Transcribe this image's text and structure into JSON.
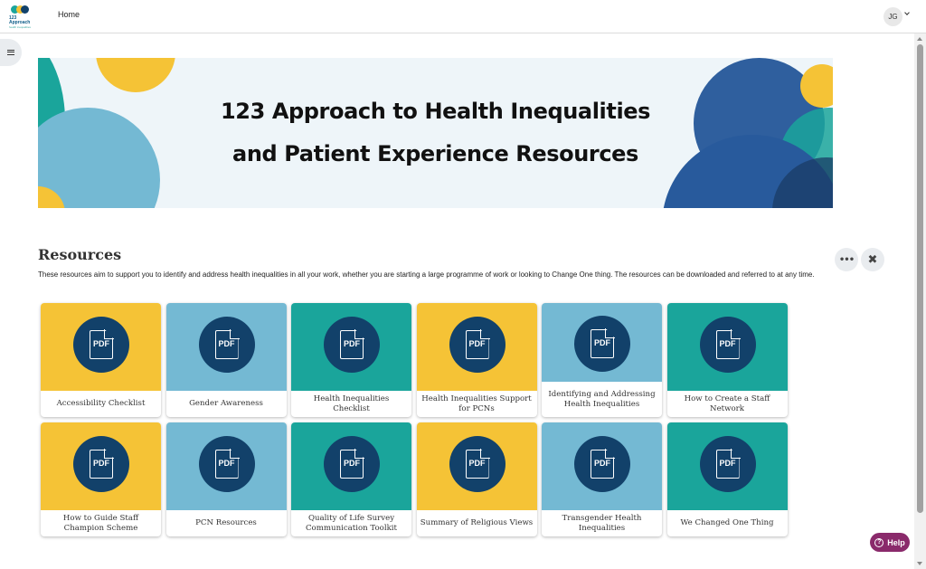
{
  "header": {
    "logo_line1": "123",
    "logo_line2": "Approach",
    "logo_tagline": "health inequalities",
    "nav_home": "Home",
    "user_initials": "JG"
  },
  "banner": {
    "title_line1": "123 Approach to Health Inequalities",
    "title_line2": "and Patient Experience Resources"
  },
  "section": {
    "heading": "Resources",
    "description": "These resources aim to support you to identify and address health inequalities in all your work, whether you are starting a large programme of work or looking to Change One thing. The resources can be downloaded and referred to at any time.",
    "more_label": "•••",
    "close_label": "✖"
  },
  "pdf_badge": "PDF",
  "cards": [
    {
      "title": "Accessibility Checklist",
      "color": "#f5c336"
    },
    {
      "title": "Gender Awareness",
      "color": "#74b9d3"
    },
    {
      "title": "Health Inequalities Checklist",
      "color": "#1aa59b"
    },
    {
      "title": "Health Inequalities Support for PCNs",
      "color": "#f5c336"
    },
    {
      "title": "Identifying and Addressing Health Inequalities",
      "color": "#74b9d3"
    },
    {
      "title": "How to Create a Staff Network",
      "color": "#1aa59b"
    },
    {
      "title": "How to Guide Staff Champion Scheme",
      "color": "#f5c336"
    },
    {
      "title": "PCN Resources",
      "color": "#74b9d3"
    },
    {
      "title": "Quality of Life Survey Communication Toolkit",
      "color": "#1aa59b"
    },
    {
      "title": "Summary of Religious Views",
      "color": "#f5c336"
    },
    {
      "title": "Transgender Health Inequalities",
      "color": "#74b9d3"
    },
    {
      "title": "We Changed One Thing",
      "color": "#1aa59b"
    }
  ],
  "help": {
    "label": "Help",
    "icon": "?"
  },
  "colors": {
    "yellow": "#f5c336",
    "light_blue": "#74b9d3",
    "teal": "#1aa59b",
    "navy": "#12416a",
    "help_purple": "#8a2a6b"
  }
}
